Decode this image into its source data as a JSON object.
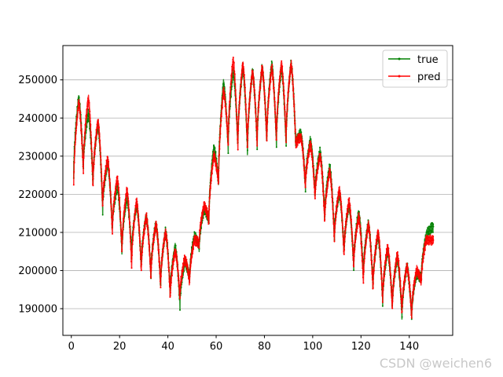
{
  "chart_data": {
    "type": "line",
    "title": "",
    "xlabel": "",
    "ylabel": "",
    "xlim": [
      -3.5,
      158
    ],
    "ylim": [
      183000,
      259000
    ],
    "xticks": [
      0,
      20,
      40,
      60,
      80,
      100,
      120,
      140
    ],
    "xtick_labels": [
      "0",
      "20",
      "40",
      "60",
      "80",
      "100",
      "120",
      "140"
    ],
    "yticks": [
      190000,
      200000,
      210000,
      220000,
      230000,
      240000,
      250000
    ],
    "ytick_labels": [
      "190000",
      "200000",
      "210000",
      "220000",
      "230000",
      "240000",
      "250000"
    ],
    "grid": "y-axis only",
    "legend_position": "top-right",
    "points_per_day": 24,
    "series": [
      {
        "name": "true",
        "color": "#008000",
        "peak_day": [
          3,
          7,
          11,
          15,
          19,
          23,
          27,
          31,
          35,
          39,
          43,
          47,
          51,
          55,
          59,
          63,
          67,
          71,
          75,
          79,
          83,
          87,
          91,
          95,
          99,
          103,
          107,
          111,
          115,
          119,
          123,
          127,
          131,
          135,
          139,
          143,
          147,
          150
        ],
        "peak_value": [
          245000,
          241000,
          238000,
          228000,
          222000,
          219000,
          217000,
          214000,
          212000,
          210000,
          206000,
          202000,
          209000,
          216000,
          232000,
          249000,
          252000,
          253000,
          252000,
          253000,
          254000,
          253000,
          254000,
          236000,
          234000,
          231000,
          227000,
          220000,
          217000,
          215000,
          212000,
          209000,
          205000,
          203000,
          201000,
          199000,
          209000,
          211500
        ],
        "trough_day": [
          1,
          5,
          9,
          13,
          17,
          21,
          25,
          29,
          33,
          37,
          41,
          45,
          49,
          53,
          57,
          61,
          65,
          69,
          73,
          77,
          81,
          85,
          89,
          93,
          97,
          101,
          105,
          109,
          113,
          117,
          121,
          125,
          129,
          133,
          137,
          141,
          145
        ],
        "trough_value": [
          225000,
          227000,
          223000,
          216000,
          211000,
          205000,
          204000,
          201000,
          199000,
          196000,
          194000,
          191000,
          198000,
          206000,
          213000,
          223000,
          232000,
          233000,
          231000,
          233000,
          234000,
          233000,
          233000,
          233000,
          222000,
          220000,
          214000,
          209000,
          205000,
          201000,
          199000,
          196000,
          192000,
          191000,
          188000,
          188000,
          198000
        ]
      },
      {
        "name": "pred",
        "color": "#ff0000",
        "peak_day": [
          3,
          7,
          11,
          15,
          19,
          23,
          27,
          31,
          35,
          39,
          43,
          47,
          51,
          55,
          59,
          63,
          67,
          71,
          75,
          79,
          83,
          87,
          91,
          95,
          99,
          103,
          107,
          111,
          115,
          119,
          123,
          127,
          131,
          135,
          139,
          143,
          147,
          150
        ],
        "peak_value": [
          244000,
          245000,
          239000,
          229000,
          224000,
          221000,
          218000,
          214000,
          212000,
          210000,
          205000,
          203000,
          208000,
          217000,
          230000,
          247000,
          255000,
          254000,
          252000,
          253000,
          253000,
          254000,
          254000,
          235000,
          233000,
          230000,
          226000,
          221000,
          218000,
          214000,
          212000,
          210000,
          206000,
          204000,
          201000,
          200000,
          208000,
          208000
        ],
        "trough_day": [
          1,
          5,
          9,
          13,
          17,
          21,
          25,
          29,
          33,
          37,
          41,
          45,
          49,
          53,
          57,
          61,
          65,
          69,
          73,
          77,
          81,
          85,
          89,
          93,
          97,
          101,
          105,
          109,
          113,
          117,
          121,
          125,
          129,
          133,
          137,
          141,
          145
        ],
        "trough_value": [
          222000,
          226000,
          222000,
          217000,
          210000,
          205000,
          201000,
          200000,
          198000,
          196000,
          193000,
          193000,
          197000,
          207000,
          213000,
          223000,
          233000,
          232000,
          232000,
          233000,
          234000,
          234000,
          234000,
          233000,
          222000,
          219000,
          213000,
          208000,
          204000,
          201000,
          197000,
          195000,
          192000,
          190000,
          189000,
          188000,
          197000
        ]
      }
    ]
  },
  "watermark": "CSDN @weichen6"
}
